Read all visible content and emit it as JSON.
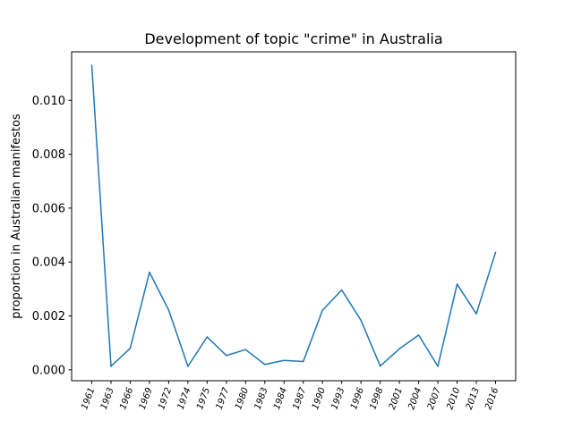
{
  "chart_data": {
    "type": "line",
    "title": "Development of topic \"crime\" in Australia",
    "xlabel": "",
    "ylabel": "proportion in Australian manifestos",
    "categories": [
      "1961",
      "1963",
      "1966",
      "1969",
      "1972",
      "1974",
      "1975",
      "1977",
      "1980",
      "1983",
      "1984",
      "1987",
      "1990",
      "1993",
      "1996",
      "1998",
      "2001",
      "2004",
      "2007",
      "2010",
      "2013",
      "2016"
    ],
    "series": [
      {
        "name": "",
        "values": [
          0.0113,
          0.00013,
          0.0008,
          0.00362,
          0.00222,
          0.00013,
          0.00122,
          0.00053,
          0.00075,
          0.0002,
          0.00035,
          0.00031,
          0.00221,
          0.00296,
          0.00184,
          0.00014,
          0.00078,
          0.00129,
          0.00013,
          0.00318,
          0.00208,
          0.00436
        ]
      }
    ],
    "yticks": [
      "0.000",
      "0.002",
      "0.004",
      "0.006",
      "0.008",
      "0.010"
    ],
    "ylim": [
      -0.000405,
      0.0118
    ],
    "grid": false,
    "line_color": "#1f77b4"
  }
}
